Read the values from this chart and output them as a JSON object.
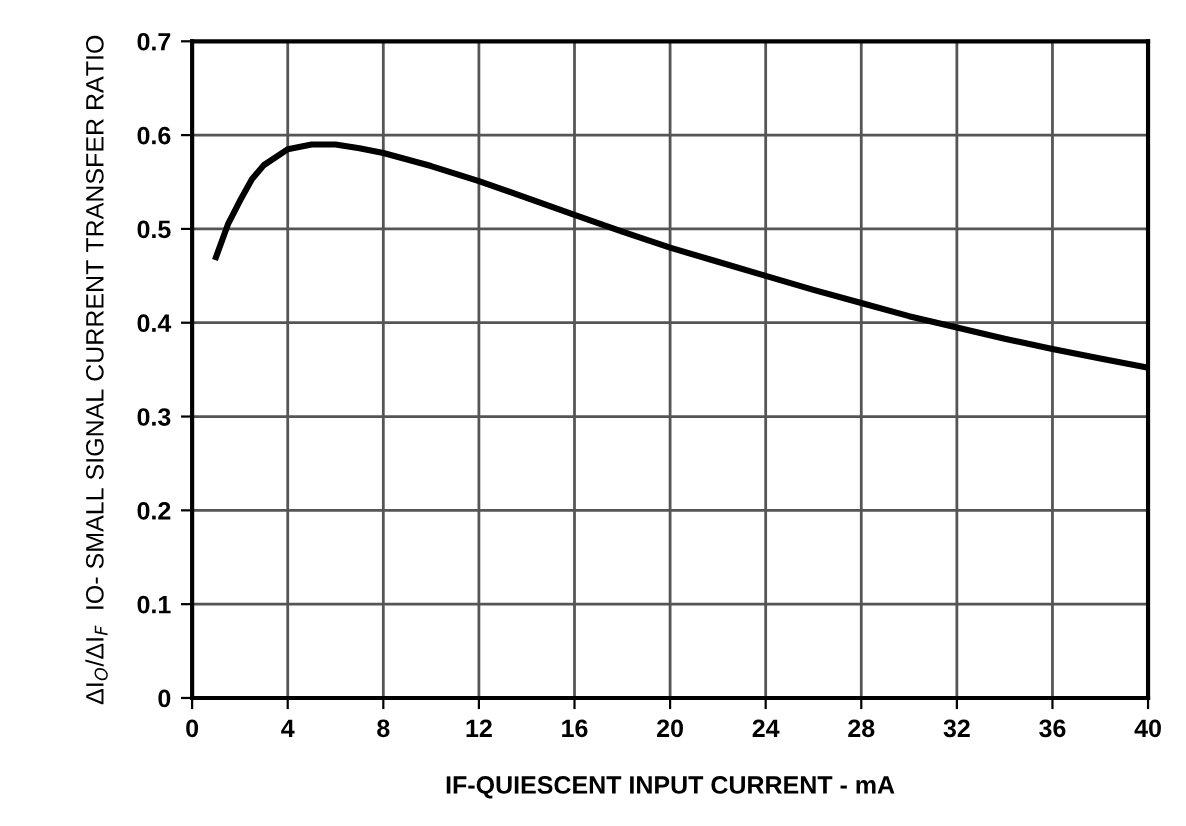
{
  "chart_data": {
    "type": "line",
    "xlabel": "IF-QUIESCENT INPUT CURRENT - mA",
    "ylabel": "ΔI$_{O}$/ΔI$_{F}$  IO- SMALL SIGNAL CURRENT TRANSFER RATIO",
    "x": [
      1,
      1.5,
      2,
      2.5,
      3,
      4,
      5,
      6,
      7,
      8,
      10,
      12,
      14,
      16,
      18,
      20,
      22,
      24,
      26,
      28,
      30,
      32,
      34,
      36,
      38,
      40
    ],
    "series": [
      {
        "color": "#000000",
        "values": [
          0.47,
          0.505,
          0.53,
          0.553,
          0.568,
          0.585,
          0.59,
          0.59,
          0.586,
          0.581,
          0.567,
          0.551,
          0.533,
          0.515,
          0.497,
          0.48,
          0.465,
          0.45,
          0.435,
          0.421,
          0.407,
          0.395,
          0.383,
          0.372,
          0.362,
          0.352
        ]
      }
    ],
    "xlim": [
      0,
      40
    ],
    "xticks": [
      0,
      4,
      8,
      12,
      16,
      20,
      24,
      28,
      32,
      36,
      40
    ],
    "ylim": [
      0,
      0.7
    ],
    "yticks": [
      0,
      0.1,
      0.2,
      0.3,
      0.4,
      0.5,
      0.6,
      0.7
    ],
    "grid": true,
    "legend": false,
    "marker": "none",
    "line_style": "solid"
  }
}
